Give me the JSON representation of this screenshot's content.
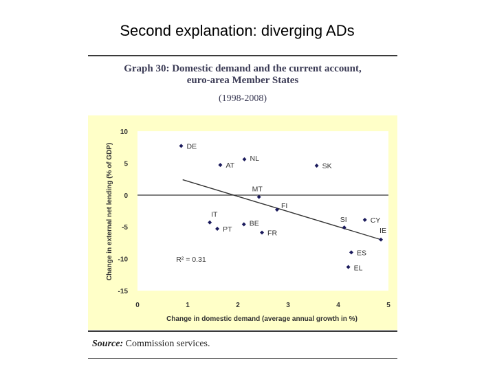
{
  "slide": {
    "title": "Second explanation: diverging ADs"
  },
  "graph": {
    "title_line1": "Graph 30: Domestic demand and the current account,",
    "title_line2": "euro-area Member States",
    "subtitle": "(1998-2008)",
    "source_label": "Source:",
    "source_text": " Commission services."
  },
  "chart_data": {
    "type": "scatter",
    "xlabel": "Change in domestic demand (average annual growth in %)",
    "ylabel": "Change in external net lending (% of GDP)",
    "xlim": [
      0,
      5
    ],
    "ylim": [
      -15,
      10
    ],
    "xticks": [
      0,
      1,
      2,
      3,
      4,
      5
    ],
    "yticks": [
      10,
      5,
      0,
      -5,
      -10,
      -15
    ],
    "points": [
      {
        "label": "DE",
        "x": 0.87,
        "y": 7.7
      },
      {
        "label": "AT",
        "x": 1.65,
        "y": 4.7
      },
      {
        "label": "NL",
        "x": 2.13,
        "y": 5.6
      },
      {
        "label": "SK",
        "x": 3.57,
        "y": 4.6
      },
      {
        "label": "MT",
        "x": 2.42,
        "y": -0.3
      },
      {
        "label": "FI",
        "x": 2.78,
        "y": -2.3
      },
      {
        "label": "IT",
        "x": 1.44,
        "y": -4.3
      },
      {
        "label": "PT",
        "x": 1.59,
        "y": -5.3
      },
      {
        "label": "BE",
        "x": 2.12,
        "y": -4.6
      },
      {
        "label": "FR",
        "x": 2.48,
        "y": -5.9
      },
      {
        "label": "SI",
        "x": 4.12,
        "y": -5.1
      },
      {
        "label": "CY",
        "x": 4.53,
        "y": -3.9
      },
      {
        "label": "IE",
        "x": 4.85,
        "y": -7.0
      },
      {
        "label": "ES",
        "x": 4.26,
        "y": -9.0
      },
      {
        "label": "EL",
        "x": 4.2,
        "y": -11.3
      }
    ],
    "trendline": {
      "x": [
        0.9,
        4.85
      ],
      "y": [
        2.4,
        -7.0
      ]
    },
    "annotation": {
      "text": "R² = 0.31",
      "x": 0.77,
      "y": -10.5
    },
    "grid": false,
    "colors": {
      "point": "#1a1a5c",
      "line": "#333333",
      "background": "#ffffc8"
    }
  }
}
